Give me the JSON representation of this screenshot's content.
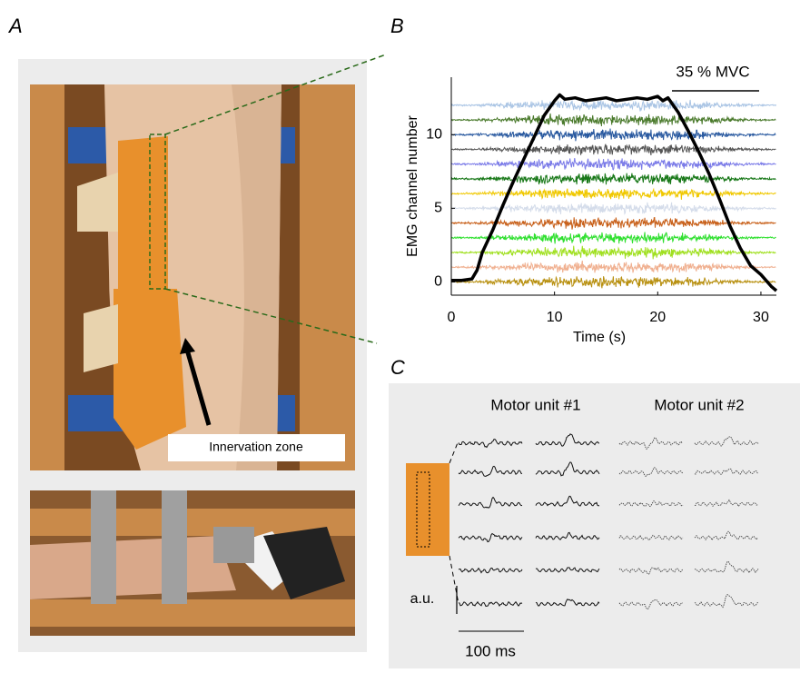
{
  "panels": {
    "A": {
      "label": "A",
      "annotation": "Innervation zone"
    },
    "B": {
      "label": "B",
      "chart_data": {
        "type": "line",
        "xlabel": "Time (s)",
        "ylabel": "EMG channel number",
        "xlim": [
          0,
          31.5
        ],
        "ylim": [
          -0.9,
          13.9
        ],
        "xticks": [
          0,
          10,
          20,
          30
        ],
        "yticks": [
          0,
          5,
          10
        ],
        "annotation": "35 % MVC",
        "channel_colors": [
          "#b89010",
          "#f0b090",
          "#a0e020",
          "#30e030",
          "#c8601a",
          "#d4dcea",
          "#f0c800",
          "#187818",
          "#7b7be8",
          "#555555",
          "#2a5aa0",
          "#4a7a2c",
          "#a9c4e4"
        ],
        "series": [
          {
            "color": "#000000",
            "x": [
              0,
              1,
              2,
              2.5,
              3,
              4,
              5,
              6,
              7,
              8,
              9,
              10,
              10.5,
              11,
              12,
              13,
              14,
              15,
              16,
              17,
              18,
              19,
              20,
              20.5,
              21,
              22,
              23,
              24,
              25,
              26,
              27,
              28,
              29,
              30,
              31,
              31.5
            ],
            "values": [
              0.1,
              0.1,
              0.2,
              0.8,
              2,
              3.5,
              5.2,
              6.8,
              8.3,
              9.8,
              11.3,
              12.3,
              12.7,
              12.4,
              12.5,
              12.3,
              12.4,
              12.5,
              12.3,
              12.4,
              12.5,
              12.4,
              12.6,
              12.3,
              12.5,
              11.5,
              10.2,
              8.8,
              7.3,
              5.6,
              3.8,
              2.3,
              1.1,
              0.5,
              -0.3,
              -0.6
            ]
          }
        ]
      }
    },
    "C": {
      "label": "C",
      "columns": [
        "Motor unit #1",
        "Motor unit #2"
      ],
      "amplitude_label": "a.u.",
      "time_scale": "100 ms"
    }
  }
}
